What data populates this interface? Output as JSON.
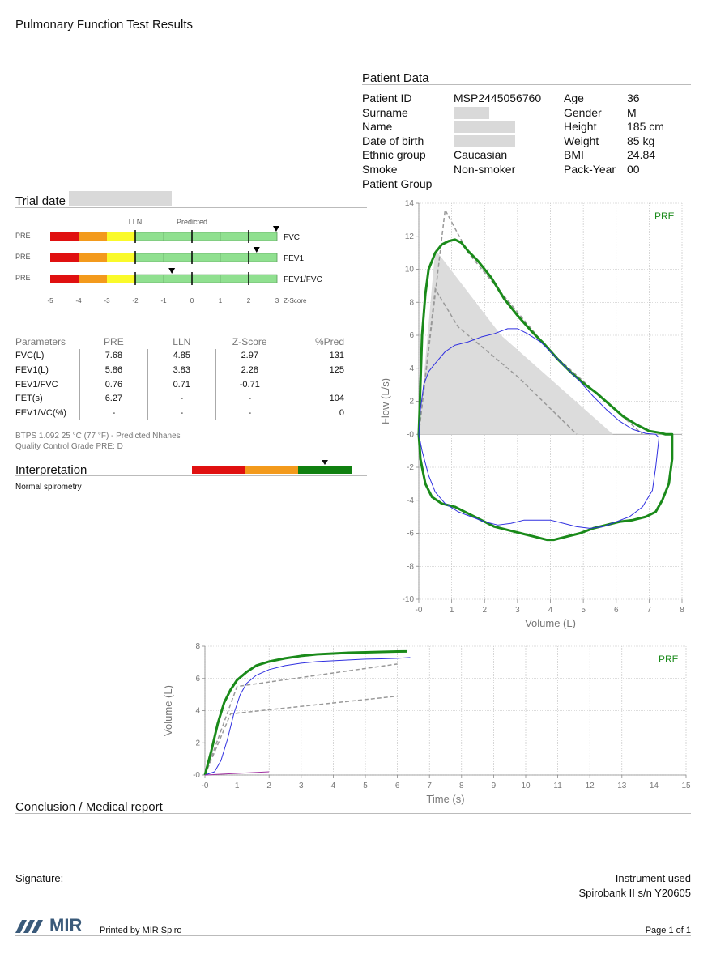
{
  "header": {
    "title": "Pulmonary Function Test Results"
  },
  "patient": {
    "heading": "Patient Data",
    "left": [
      {
        "label": "Patient ID",
        "value": "MSP2445056760"
      },
      {
        "label": "Surname",
        "value": ""
      },
      {
        "label": "Name",
        "value": ""
      },
      {
        "label": "Date of birth",
        "value": ""
      },
      {
        "label": "Ethnic group",
        "value": "Caucasian"
      },
      {
        "label": "Smoke",
        "value": "Non-smoker"
      },
      {
        "label": "Patient Group",
        "value": ""
      }
    ],
    "right": [
      {
        "label": "Age",
        "value": "36"
      },
      {
        "label": "Gender",
        "value": "M"
      },
      {
        "label": "Height",
        "value": "185 cm"
      },
      {
        "label": "Weight",
        "value": "85 kg"
      },
      {
        "label": "BMI",
        "value": "24.84"
      },
      {
        "label": "Pack-Year",
        "value": "00"
      }
    ]
  },
  "trial": {
    "label": "Trial date",
    "value": ""
  },
  "zscore_chart": {
    "lln_label": "LLN",
    "predicted_label": "Predicted",
    "pre_label": "PRE",
    "axis_label": "Z-Score",
    "ticks": [
      "-5",
      "-4",
      "-3",
      "-2",
      "-1",
      "0",
      "1",
      "2",
      "3"
    ],
    "rows": [
      {
        "name": "FVC",
        "z": 2.97
      },
      {
        "name": "FEV1",
        "z": 2.28
      },
      {
        "name": "FEV1/FVC",
        "z": -0.71
      }
    ],
    "colors": {
      "red": "#e01010",
      "orange": "#f39a1c",
      "yellow": "#fafa2a",
      "green": "#90e090"
    }
  },
  "parameters": {
    "headers": [
      "Parameters",
      "PRE",
      "LLN",
      "Z-Score",
      "%Pred"
    ],
    "rows": [
      [
        "FVC(L)",
        "7.68",
        "4.85",
        "2.97",
        "131"
      ],
      [
        "FEV1(L)",
        "5.86",
        "3.83",
        "2.28",
        "125"
      ],
      [
        "FEV1/FVC",
        "0.76",
        "0.71",
        "-0.71",
        ""
      ],
      [
        "FET(s)",
        "6.27",
        "-",
        "-",
        "104"
      ],
      [
        "FEV1/VC(%)",
        "-",
        "-",
        "-",
        "0"
      ]
    ]
  },
  "notes": {
    "btps": "BTPS 1.092 25 °C (77 °F) - Predicted Nhanes",
    "qc": "Quality Control Grade PRE: D"
  },
  "interpretation": {
    "heading": "Interpretation",
    "text": "Normal spirometry",
    "colors": [
      "#e01010",
      "#f39a1c",
      "#108010"
    ]
  },
  "chart_data": [
    {
      "type": "line",
      "legend": "PRE",
      "xlabel": "Volume (L)",
      "ylabel": "Flow (L/s)",
      "xlim": [
        0,
        8
      ],
      "ylim": [
        -10,
        14
      ],
      "xticks": [
        "-0",
        "1",
        "2",
        "3",
        "4",
        "5",
        "6",
        "7",
        "8"
      ],
      "yticks": [
        "-10",
        "-8",
        "-6",
        "-4",
        "-2",
        "-0",
        "2",
        "4",
        "6",
        "8",
        "10",
        "12",
        "14"
      ],
      "series": [
        {
          "color": "#1a8a1a",
          "width": 3,
          "x": [
            0,
            0.05,
            0.1,
            0.2,
            0.3,
            0.5,
            0.7,
            0.9,
            1.1,
            1.3,
            1.5,
            1.8,
            2.2,
            2.6,
            3,
            3.4,
            3.8,
            4.2,
            4.6,
            5,
            5.4,
            5.8,
            6.2,
            6.6,
            7,
            7.3,
            7.5,
            7.7,
            7.7,
            7.6,
            7.4,
            7.2,
            6.9,
            6.5,
            6.1,
            5.7,
            5.3,
            4.9,
            4.5,
            4.1,
            3.9,
            3.5,
            3.1,
            2.7,
            2.3,
            1.9,
            1.5,
            1.1,
            0.7,
            0.4,
            0.2,
            0.05,
            0
          ],
          "y": [
            0,
            3,
            6,
            8.5,
            10,
            11,
            11.5,
            11.7,
            11.8,
            11.6,
            11.1,
            10.5,
            9.5,
            8.2,
            7.2,
            6.3,
            5.5,
            4.6,
            3.8,
            3.1,
            2.5,
            1.8,
            1.1,
            0.6,
            0.2,
            0.1,
            0,
            0,
            -1.5,
            -3,
            -4,
            -4.7,
            -5,
            -5.2,
            -5.3,
            -5.5,
            -5.7,
            -6,
            -6.2,
            -6.4,
            -6.4,
            -6.2,
            -6,
            -5.8,
            -5.6,
            -5.2,
            -4.8,
            -4.4,
            -4.2,
            -3.8,
            -3,
            -1.5,
            0
          ]
        },
        {
          "color": "#3030e0",
          "width": 1,
          "x": [
            0,
            0.05,
            0.15,
            0.3,
            0.5,
            0.8,
            1.1,
            1.5,
            1.9,
            2.3,
            2.7,
            3,
            3.3,
            3.7,
            4.1,
            4.5,
            4.9,
            5.3,
            5.7,
            6.1,
            6.5,
            6.9,
            7.2,
            7.3,
            7.2,
            7.1,
            6.8,
            6.4,
            6,
            5.6,
            5.2,
            4.8,
            4.4,
            4,
            3.6,
            3.2,
            2.8,
            2.4,
            2,
            1.6,
            1.2,
            0.8,
            0.5,
            0.3,
            0.1,
            0
          ],
          "y": [
            0,
            1.5,
            3,
            3.8,
            4.3,
            5,
            5.4,
            5.6,
            5.9,
            6.1,
            6.4,
            6.4,
            6.1,
            5.6,
            4.8,
            4,
            3.2,
            2.3,
            1.5,
            0.8,
            0.3,
            0.05,
            0,
            -0.2,
            -2,
            -3.4,
            -4.4,
            -5,
            -5.3,
            -5.6,
            -5.7,
            -5.6,
            -5.4,
            -5.2,
            -5.2,
            -5.2,
            -5.4,
            -5.5,
            -5.3,
            -5,
            -4.7,
            -4.2,
            -3.5,
            -2.5,
            -1,
            0
          ]
        }
      ],
      "predicted": [
        {
          "color": "#999",
          "x": [
            0,
            0.8,
            1.5,
            4,
            6.8
          ],
          "y": [
            0,
            13.6,
            11,
            5,
            0
          ]
        },
        {
          "color": "#999",
          "x": [
            0,
            0.5,
            1.2,
            3,
            4.8
          ],
          "y": [
            0,
            8.8,
            6.5,
            3.5,
            0
          ]
        }
      ],
      "shaded": {
        "color": "#dcdcdc",
        "x": [
          0,
          0.5,
          2.5,
          5.9,
          0
        ],
        "y": [
          0,
          11.2,
          6,
          0,
          0
        ]
      }
    },
    {
      "type": "line",
      "legend": "PRE",
      "xlabel": "Time (s)",
      "ylabel": "Volume (L)",
      "xlim": [
        0,
        15
      ],
      "ylim": [
        0,
        8
      ],
      "xticks": [
        "-0",
        "1",
        "2",
        "3",
        "4",
        "5",
        "6",
        "7",
        "8",
        "9",
        "10",
        "11",
        "12",
        "13",
        "14",
        "15"
      ],
      "yticks": [
        "-0",
        "2",
        "4",
        "6",
        "8"
      ],
      "series": [
        {
          "color": "#1a8a1a",
          "width": 3,
          "x": [
            0,
            0.2,
            0.4,
            0.6,
            0.8,
            1,
            1.3,
            1.6,
            2,
            2.5,
            3,
            3.5,
            4,
            4.5,
            5,
            5.5,
            6,
            6.3
          ],
          "y": [
            0,
            1.5,
            3.2,
            4.5,
            5.3,
            5.9,
            6.4,
            6.8,
            7.05,
            7.25,
            7.4,
            7.5,
            7.55,
            7.6,
            7.62,
            7.65,
            7.67,
            7.68
          ]
        },
        {
          "color": "#3030e0",
          "width": 1,
          "x": [
            0,
            0.3,
            0.5,
            0.7,
            0.9,
            1.1,
            1.3,
            1.6,
            2,
            2.5,
            3,
            3.5,
            4,
            4.5,
            5,
            5.5,
            6,
            6.4
          ],
          "y": [
            0,
            0.2,
            0.9,
            2.2,
            3.8,
            5,
            5.7,
            6.2,
            6.55,
            6.8,
            6.95,
            7.05,
            7.1,
            7.15,
            7.2,
            7.22,
            7.25,
            7.3
          ]
        },
        {
          "color": "#a030a0",
          "width": 1,
          "x": [
            0,
            0.5,
            1,
            1.5,
            2
          ],
          "y": [
            0,
            0.05,
            0.1,
            0.15,
            0.2
          ]
        }
      ],
      "predicted": [
        {
          "color": "#999",
          "x": [
            0,
            1,
            6
          ],
          "y": [
            0,
            5.5,
            6.9
          ]
        },
        {
          "color": "#999",
          "x": [
            0,
            0.8,
            6
          ],
          "y": [
            0,
            3.8,
            4.9
          ]
        }
      ]
    }
  ],
  "conclusion": {
    "heading": "Conclusion / Medical report"
  },
  "signature": {
    "label": "Signature:"
  },
  "instrument": {
    "label": "Instrument used",
    "value": "Spirobank II s/n Y20605"
  },
  "footer": {
    "logo": "MIR",
    "printed": "Printed by MIR Spiro",
    "page": "Page 1 of 1"
  }
}
